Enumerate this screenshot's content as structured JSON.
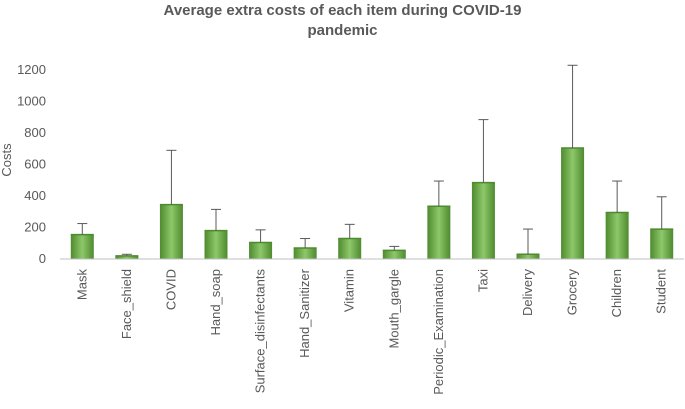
{
  "chart_data": {
    "type": "bar",
    "title_line1": "Average extra costs of each item during COVID-19",
    "title_line2": "pandemic",
    "xlabel": "",
    "ylabel": "Costs",
    "ylim": [
      0,
      1300
    ],
    "yticks": [
      0,
      200,
      400,
      600,
      800,
      1000,
      1200
    ],
    "grid": false,
    "bar_color": "#70AD47",
    "bar_color_light": "#8DC86A",
    "bar_color_dark": "#4E8A2E",
    "error_color": "#595959",
    "axis_color": "#BFBFBF",
    "categories": [
      "Mask",
      "Face_shield",
      "COVID",
      "Hand_soap",
      "Surface_disinfectants",
      "Hand_Sanitizer",
      "Vitamin",
      "Mouth_gargle",
      "Periodic_Examination",
      "Taxi",
      "Delivery",
      "Grocery",
      "Children",
      "Student"
    ],
    "values": [
      155,
      20,
      345,
      180,
      105,
      70,
      130,
      55,
      335,
      485,
      30,
      705,
      295,
      190
    ],
    "error_upper": [
      225,
      30,
      690,
      315,
      185,
      130,
      220,
      80,
      495,
      885,
      190,
      1230,
      495,
      395
    ]
  }
}
